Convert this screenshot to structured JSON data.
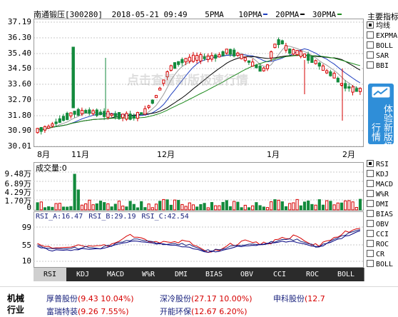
{
  "header": {
    "stock_name": "南通锻压[300280]",
    "datetime": "2018-05-21 09:49",
    "ma_labels": [
      {
        "text": "5PMA",
        "color": "#ffffff"
      },
      {
        "text": "10PMA",
        "color": "#1f3fbf"
      },
      {
        "text": "20PMA",
        "color": "#000000"
      },
      {
        "text": "30PMA",
        "color": "#d60000"
      },
      {
        "text": "",
        "color": "#1c8a1c"
      }
    ]
  },
  "price_axis": [
    "37.19",
    "36.30",
    "35.40",
    "34.50",
    "33.60",
    "32.70",
    "31.80",
    "30.90",
    "30.01"
  ],
  "month_labels": [
    "8月",
    "11月",
    "12月",
    "1月",
    "2月"
  ],
  "volume": {
    "title": "成交量:0",
    "axis": [
      "9.48万",
      "6.89万",
      "4.29万",
      "1.70万",
      "0"
    ]
  },
  "rsi": {
    "labels": [
      {
        "text": "RSI_A:16.47",
        "color": "#1a237e"
      },
      {
        "text": "RSI_B:29.19",
        "color": "#1a237e"
      },
      {
        "text": "RSI_C:42.54",
        "color": "#1a237e"
      }
    ],
    "axis": [
      "99",
      "55",
      "10"
    ]
  },
  "tabs": [
    "RSI",
    "KDJ",
    "MACD",
    "W%R",
    "DMI",
    "BIAS",
    "OBV",
    "CCI",
    "ROC",
    "CR",
    "BOLL"
  ],
  "active_tab": "RSI",
  "right_panel": {
    "title": "主要指标",
    "main_options": [
      "均线",
      "EXPMA",
      "BOLL",
      "SAR",
      "BBI"
    ],
    "main_selected": "均线",
    "promo_text": "体验新版极速行情",
    "sub_options": [
      "RSI",
      "KDJ",
      "MACD",
      "W%R",
      "DMI",
      "BIAS",
      "OBV",
      "CCI",
      "ROC",
      "CR",
      "BOLL"
    ],
    "sub_selected": "RSI"
  },
  "watermark": "点击查看新版极速行情",
  "bottom": {
    "section_label": "机械行业",
    "stocks_row1": [
      {
        "name": "厚普股份",
        "price": "9.43",
        "change": "10.04%"
      },
      {
        "name": "深冷股份",
        "price": "27.17",
        "change": "10.00%"
      },
      {
        "name": "申科股份",
        "price": "12.7",
        "change": ""
      }
    ],
    "stocks_row2": [
      {
        "name": "富瑞特装",
        "price": "9.26",
        "change": "7.55%"
      },
      {
        "name": "开能环保",
        "price": "12.67",
        "change": "6.20%"
      }
    ]
  }
}
